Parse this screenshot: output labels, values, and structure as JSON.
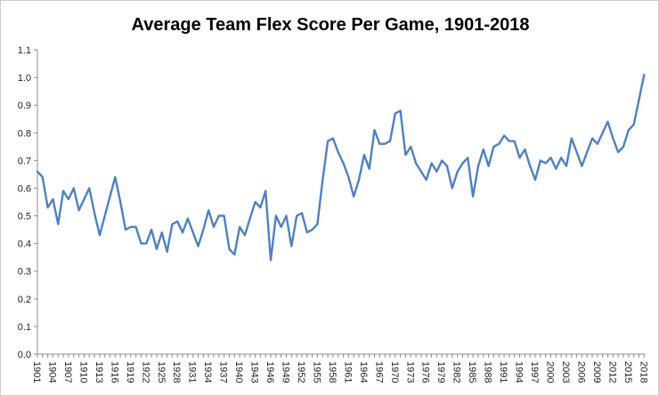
{
  "title": "Average Team Flex Score Per Game, 1901-2018",
  "style": {
    "line_color": "#4F81BD",
    "axis_color": "#8C8C8C",
    "text_color": "#1f1f1f",
    "background": "#FFFFFF",
    "border_color": "#CDCDCD"
  },
  "chart_data": {
    "type": "line",
    "title": "Average Team Flex Score Per Game, 1901-2018",
    "xlabel": "",
    "ylabel": "",
    "x_start_year": 1901,
    "x_end_year": 2018,
    "ylim": [
      0.0,
      1.1
    ],
    "grid": "none",
    "legend": "none",
    "y_tick_labels": [
      "0.0",
      "0.1",
      "0.2",
      "0.3",
      "0.4",
      "0.5",
      "0.6",
      "0.7",
      "0.8",
      "0.9",
      "1.0",
      "1.1"
    ],
    "x_tick_labels": [
      "1901",
      "1904",
      "1907",
      "1910",
      "1913",
      "1916",
      "1919",
      "1922",
      "1925",
      "1928",
      "1931",
      "1934",
      "1937",
      "1940",
      "1943",
      "1946",
      "1949",
      "1952",
      "1955",
      "1958",
      "1961",
      "1964",
      "1967",
      "1970",
      "1973",
      "1976",
      "1979",
      "1982",
      "1985",
      "1988",
      "1991",
      "1994",
      "1997",
      "2000",
      "2003",
      "2006",
      "2009",
      "2012",
      "2015",
      "2018"
    ],
    "x_tick_label_every_n_years": 3,
    "series": [
      {
        "name": "Average Team Flex Score Per Game",
        "color": "#4F81BD",
        "values": [
          0.66,
          0.64,
          0.53,
          0.56,
          0.47,
          0.59,
          0.56,
          0.6,
          0.52,
          0.56,
          0.6,
          0.51,
          0.43,
          0.5,
          0.57,
          0.64,
          0.55,
          0.45,
          0.46,
          0.46,
          0.4,
          0.4,
          0.45,
          0.38,
          0.44,
          0.37,
          0.47,
          0.48,
          0.44,
          0.49,
          0.44,
          0.39,
          0.45,
          0.52,
          0.46,
          0.5,
          0.5,
          0.38,
          0.36,
          0.46,
          0.43,
          0.49,
          0.55,
          0.53,
          0.59,
          0.34,
          0.5,
          0.46,
          0.5,
          0.39,
          0.5,
          0.51,
          0.44,
          0.45,
          0.47,
          0.63,
          0.77,
          0.78,
          0.73,
          0.69,
          0.64,
          0.57,
          0.63,
          0.72,
          0.67,
          0.81,
          0.76,
          0.76,
          0.77,
          0.87,
          0.88,
          0.72,
          0.75,
          0.69,
          0.66,
          0.63,
          0.69,
          0.66,
          0.7,
          0.68,
          0.6,
          0.66,
          0.69,
          0.71,
          0.57,
          0.68,
          0.74,
          0.68,
          0.75,
          0.76,
          0.79,
          0.77,
          0.77,
          0.71,
          0.74,
          0.68,
          0.63,
          0.7,
          0.69,
          0.71,
          0.67,
          0.71,
          0.68,
          0.78,
          0.73,
          0.68,
          0.73,
          0.78,
          0.76,
          0.8,
          0.84,
          0.78,
          0.73,
          0.75,
          0.81,
          0.83,
          0.92,
          1.01
        ]
      }
    ]
  }
}
